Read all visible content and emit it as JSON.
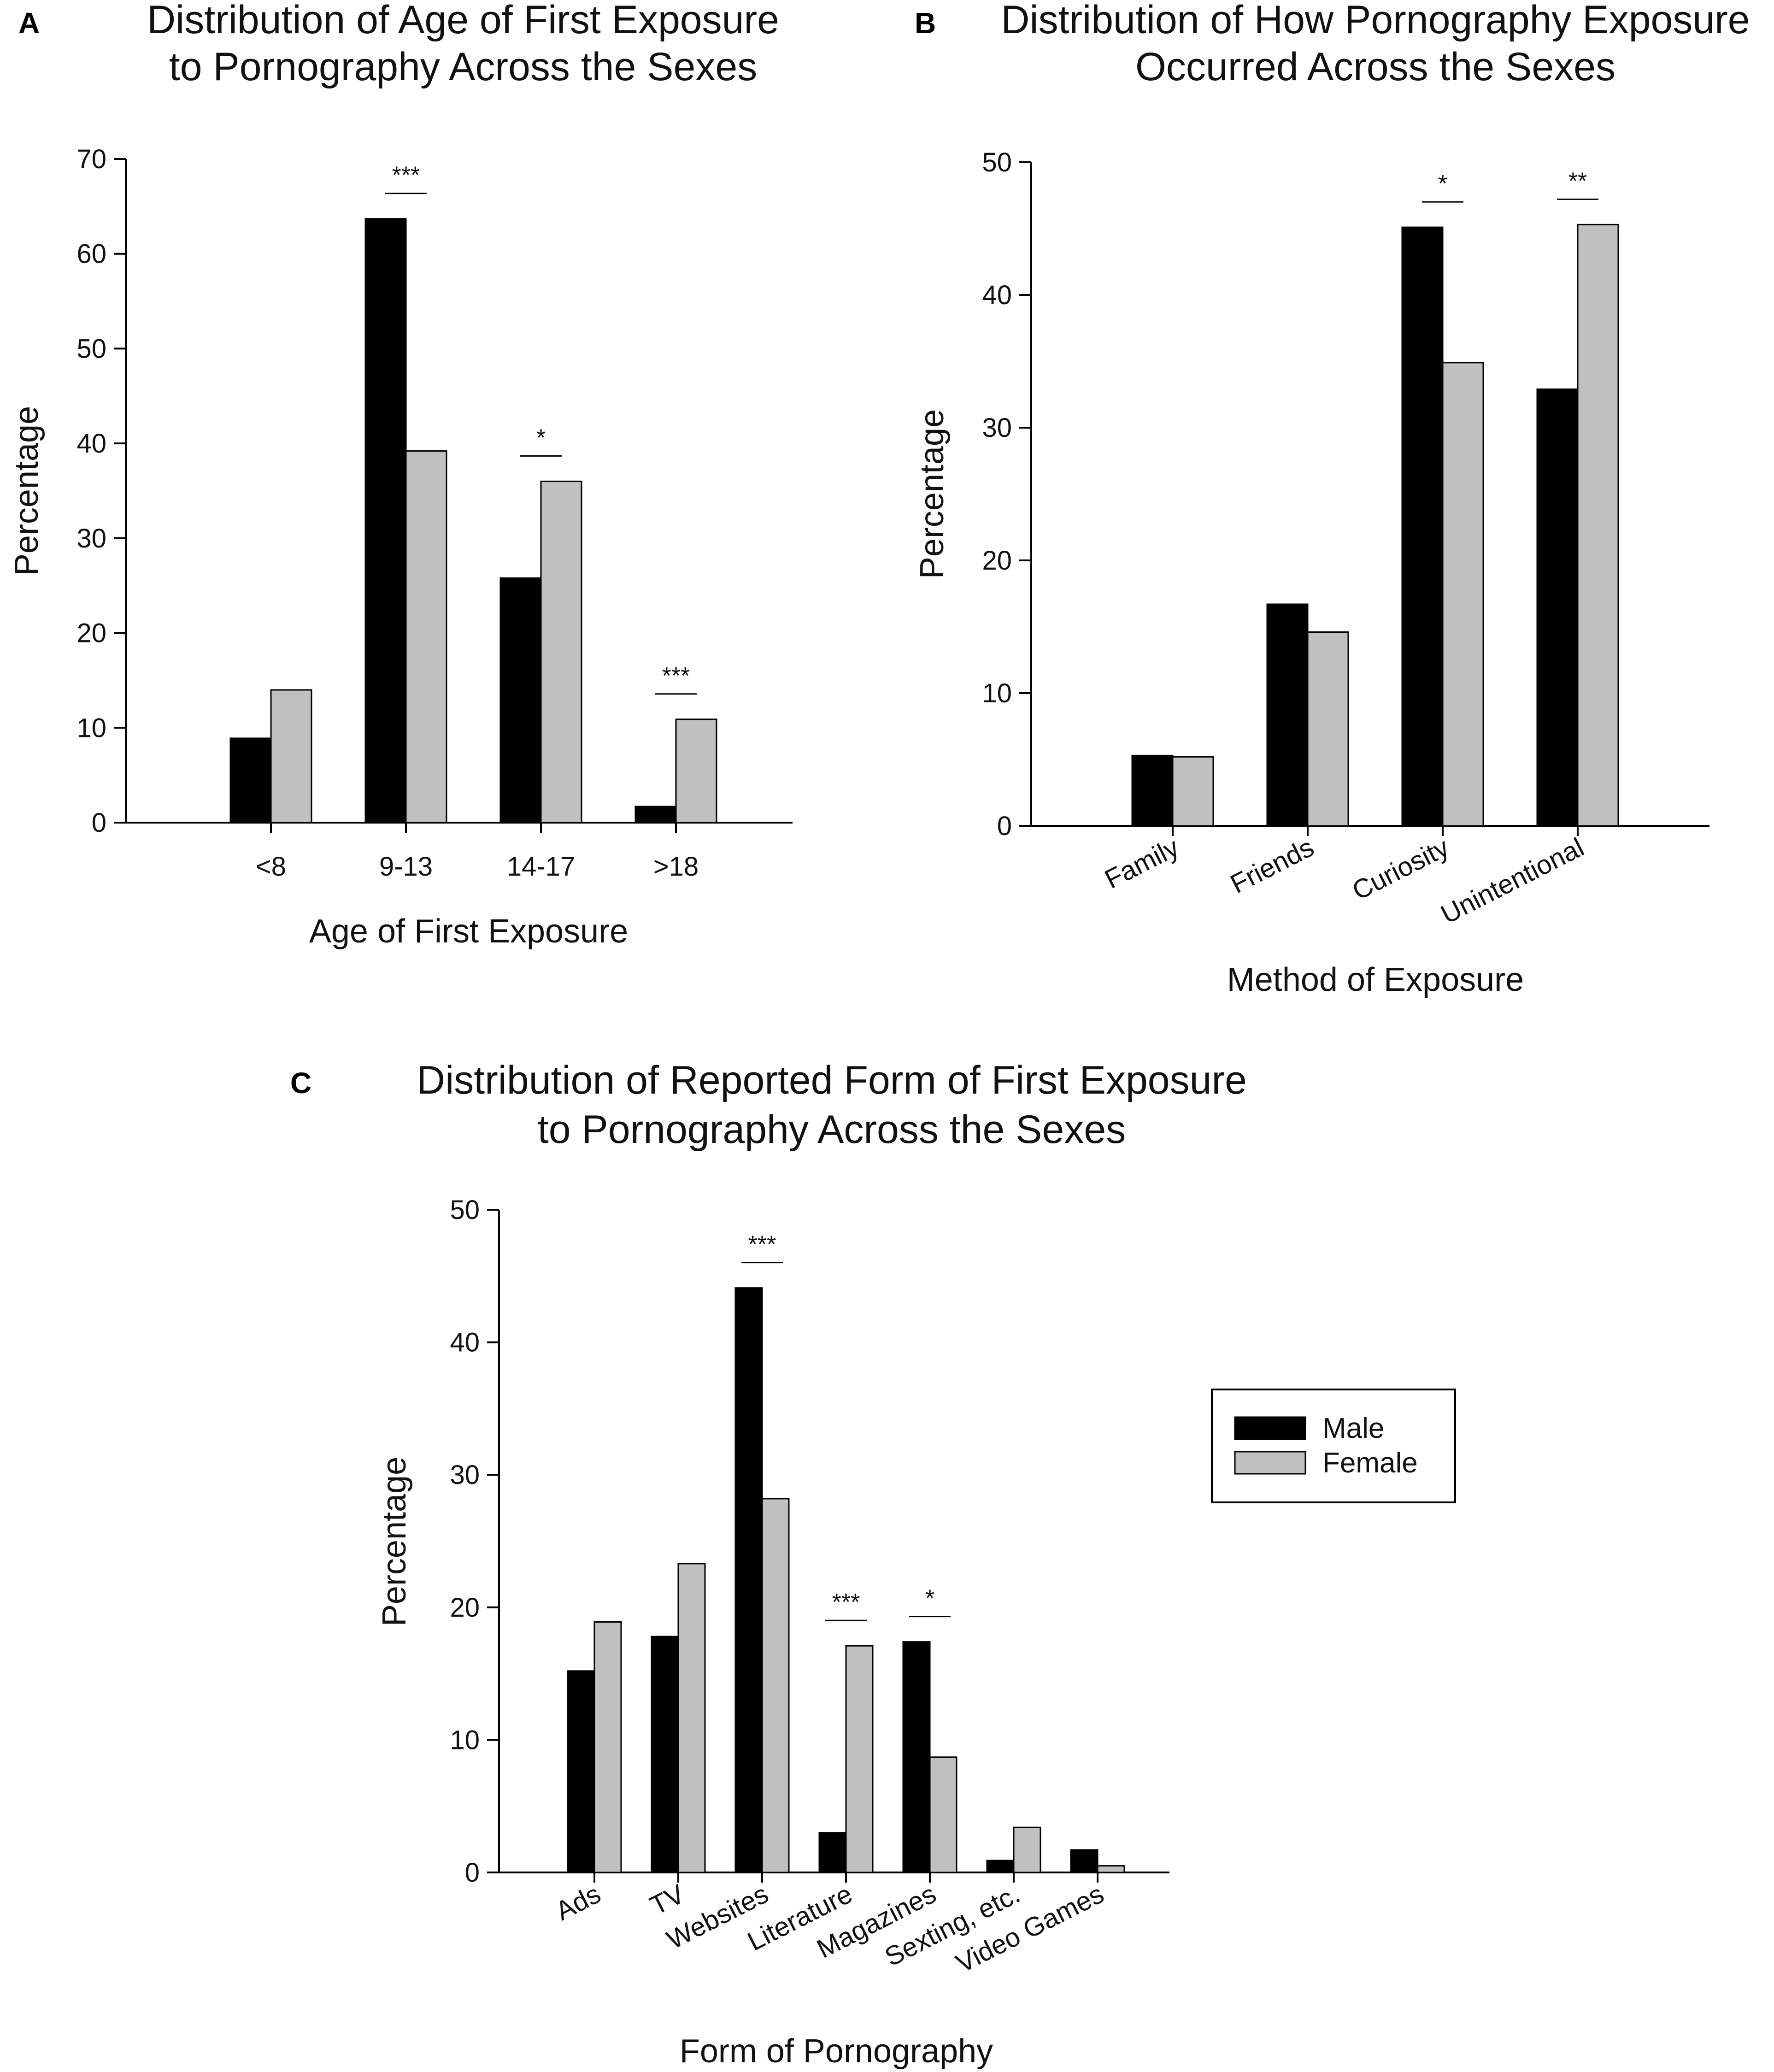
{
  "colors": {
    "male": "#000000",
    "female": "#c0c0c0"
  },
  "legend": {
    "male": "Male",
    "female": "Female"
  },
  "chart_data": [
    {
      "id": "A",
      "panel_label": "A",
      "type": "bar",
      "title_lines": [
        "Distribution of Age of First Exposure",
        "to Pornography Across the Sexes"
      ],
      "xlabel": "Age of First Exposure",
      "ylabel": "Percentage",
      "ylim": [
        0,
        70
      ],
      "yticks": [
        0,
        10,
        20,
        30,
        40,
        50,
        60,
        70
      ],
      "categories": [
        "<8",
        "9-13",
        "14-17",
        ">18"
      ],
      "series": [
        {
          "name": "Male",
          "values": [
            8.9,
            63.7,
            25.8,
            1.7
          ]
        },
        {
          "name": "Female",
          "values": [
            14.0,
            39.2,
            36.0,
            10.9
          ]
        }
      ],
      "significance": [
        "",
        "***",
        "*",
        "***"
      ]
    },
    {
      "id": "B",
      "panel_label": "B",
      "type": "bar",
      "title_lines": [
        "Distribution of How Pornography Exposure",
        "Occurred Across the Sexes"
      ],
      "xlabel": "Method of Exposure",
      "ylabel": "Percentage",
      "ylim": [
        0,
        50
      ],
      "yticks": [
        0,
        10,
        20,
        30,
        40,
        50
      ],
      "categories": [
        "Family",
        "Friends",
        "Curiosity",
        "Unintentional"
      ],
      "series": [
        {
          "name": "Male",
          "values": [
            5.3,
            16.7,
            45.1,
            32.9
          ]
        },
        {
          "name": "Female",
          "values": [
            5.2,
            14.6,
            34.9,
            45.3
          ]
        }
      ],
      "significance": [
        "",
        "",
        "*",
        "**"
      ]
    },
    {
      "id": "C",
      "panel_label": "C",
      "type": "bar",
      "title_lines": [
        "Distribution of Reported Form of First Exposure",
        "to Pornography Across the Sexes"
      ],
      "xlabel": "Form of Pornography",
      "ylabel": "Percentage",
      "ylim": [
        0,
        50
      ],
      "yticks": [
        0,
        10,
        20,
        30,
        40,
        50
      ],
      "categories": [
        "Ads",
        "TV",
        "Websites",
        "Literature",
        "Magazines",
        "Sexting, etc.",
        "Video Games"
      ],
      "series": [
        {
          "name": "Male",
          "values": [
            15.2,
            17.8,
            44.1,
            3.0,
            17.4,
            0.9,
            1.7
          ]
        },
        {
          "name": "Female",
          "values": [
            18.9,
            23.3,
            28.2,
            17.1,
            8.7,
            3.4,
            0.5
          ]
        }
      ],
      "significance": [
        "",
        "",
        "***",
        "***",
        "*",
        "",
        ""
      ]
    }
  ]
}
